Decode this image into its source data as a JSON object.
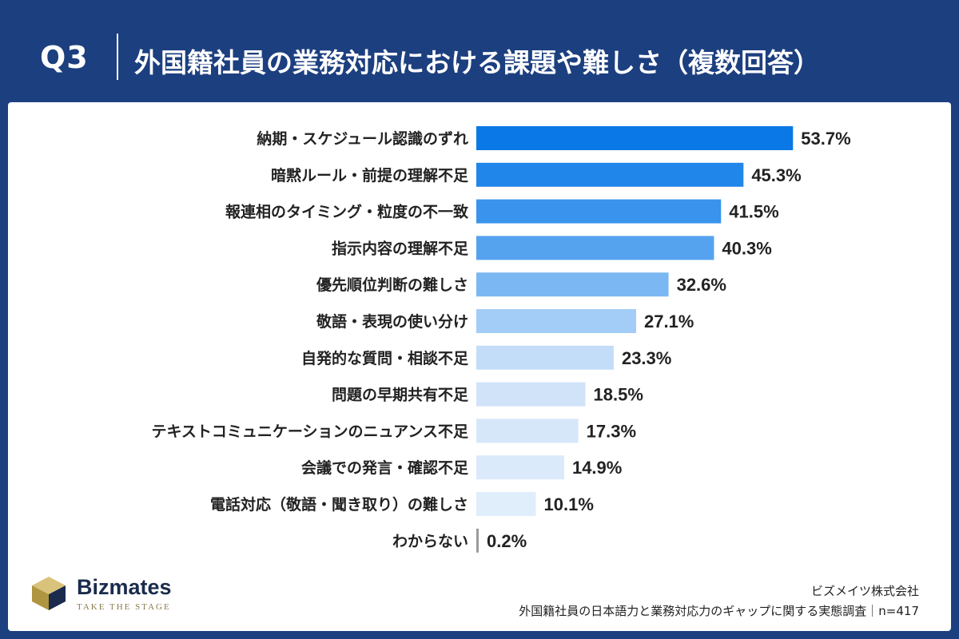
{
  "header": {
    "q_label": "Q3",
    "title": "外国籍社員の業務対応における課題や難しさ（複数回答）"
  },
  "chart_data": {
    "type": "bar",
    "orientation": "horizontal",
    "categories": [
      "納期・スケジュール認識のずれ",
      "暗黙ルール・前提の理解不足",
      "報連相のタイミング・粒度の不一致",
      "指示内容の理解不足",
      "優先順位判断の難しさ",
      "敬語・表現の使い分け",
      "自発的な質問・相談不足",
      "問題の早期共有不足",
      "テキストコミュニケーションのニュアンス不足",
      "会議での発言・確認不足",
      "電話対応（敬語・聞き取り）の難しさ",
      "わからない"
    ],
    "values": [
      53.7,
      45.3,
      41.5,
      40.3,
      32.6,
      27.1,
      23.3,
      18.5,
      17.3,
      14.9,
      10.1,
      0.2
    ],
    "value_labels": [
      "53.7%",
      "45.3%",
      "41.5%",
      "40.3%",
      "32.6%",
      "27.1%",
      "23.3%",
      "18.5%",
      "17.3%",
      "14.9%",
      "10.1%",
      "0.2%"
    ],
    "unit": "%",
    "bar_colors": [
      "#0a78e6",
      "#2186ea",
      "#3a93ec",
      "#55a3ef",
      "#7bb8f3",
      "#a3cdf6",
      "#c3ddf8",
      "#d0e3f9",
      "#d6e7fa",
      "#dbeafb",
      "#e0edfb",
      "#9a9a9a"
    ],
    "grid": false,
    "legend": "none"
  },
  "footer": {
    "brand_name": "Bizmates",
    "brand_tagline": "TAKE THE STAGE",
    "company": "ビズメイツ株式会社",
    "survey": "外国籍社員の日本語力と業務対応力のギャップに関する実態調査｜n=417"
  }
}
